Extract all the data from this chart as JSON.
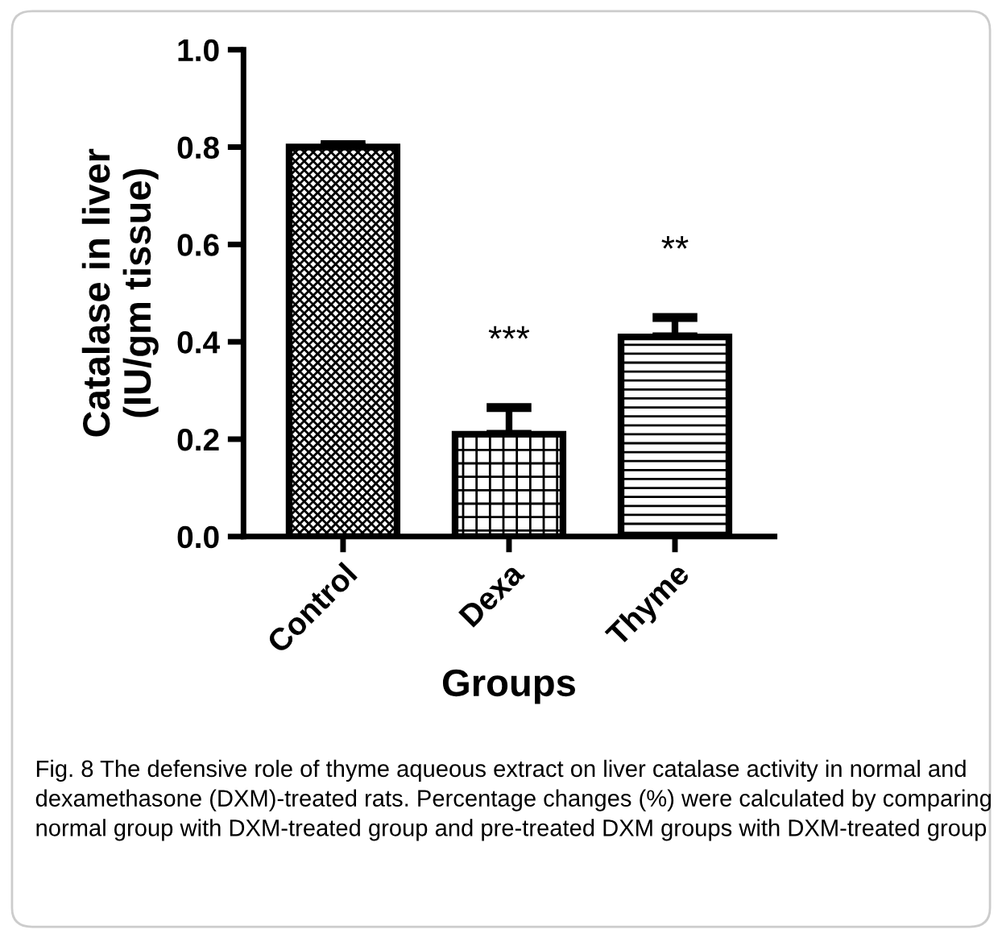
{
  "chart_data": {
    "type": "bar",
    "xlabel": "Groups",
    "ylabel": "Catalase in liver\n(IU/gm tissue)",
    "categories": [
      "Control",
      "Dexa",
      "Thyme"
    ],
    "values": [
      0.8,
      0.21,
      0.41
    ],
    "errors": [
      0.005,
      0.055,
      0.04
    ],
    "colors": [
      "#000000",
      "#000000",
      "#000000"
    ],
    "ylim": [
      0,
      1.0
    ],
    "yticks": [
      {
        "value": 0,
        "label": "0.0"
      },
      0.2,
      0.4,
      0.6,
      0.8,
      {
        "value": 1,
        "label": "1.0"
      }
    ],
    "grid": false,
    "legend": false,
    "annotations": [
      "***",
      "**",
      "Fig. 8 The defensive role of thyme aqueous extract on liver catalase activity in normal and dexamethasone (DXM)-treated rats. Percentage changes (%) were calculated by comparing normal group with DXM-treated group and pre-treated DXM groups with DXM-treated group"
    ]
  }
}
